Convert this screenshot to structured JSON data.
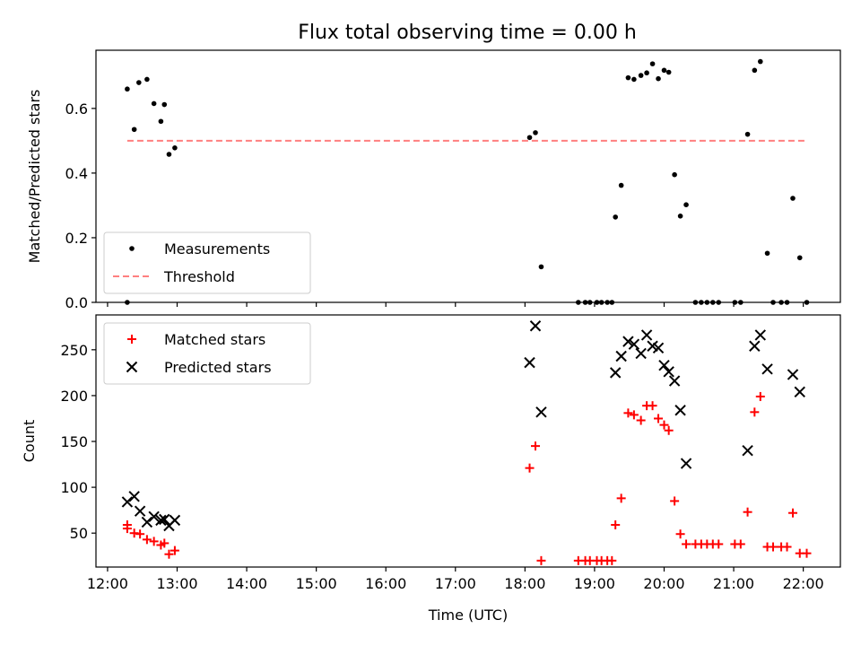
{
  "chart_data": [
    {
      "type": "scatter",
      "title": "Flux total observing time = 0.00 h",
      "xlabel": "",
      "ylabel": "Matched/Predicted stars",
      "xlim": [
        "11:50",
        "22:32"
      ],
      "ylim": [
        0,
        0.78
      ],
      "yticks": [
        0.0,
        0.2,
        0.4,
        0.6
      ],
      "grid": false,
      "legend_position": "lower-left",
      "series": [
        {
          "name": "Measurements",
          "kind": "scatter",
          "color": "#000000",
          "marker": "dot",
          "points": [
            [
              "12:17",
              0.0
            ],
            [
              "12:17",
              0.66
            ],
            [
              "12:23",
              0.535
            ],
            [
              "12:27",
              0.68
            ],
            [
              "12:34",
              0.69
            ],
            [
              "12:40",
              0.615
            ],
            [
              "12:46",
              0.56
            ],
            [
              "12:49",
              0.612
            ],
            [
              "12:53",
              0.458
            ],
            [
              "12:58",
              0.478
            ],
            [
              "18:04",
              0.51
            ],
            [
              "18:09",
              0.525
            ],
            [
              "18:14",
              0.11
            ],
            [
              "18:46",
              0.0
            ],
            [
              "18:52",
              0.0
            ],
            [
              "18:56",
              0.0
            ],
            [
              "19:02",
              0.0
            ],
            [
              "19:06",
              0.0
            ],
            [
              "19:11",
              0.0
            ],
            [
              "19:15",
              0.0
            ],
            [
              "19:18",
              0.264
            ],
            [
              "19:23",
              0.362
            ],
            [
              "19:29",
              0.695
            ],
            [
              "19:34",
              0.69
            ],
            [
              "19:40",
              0.702
            ],
            [
              "19:45",
              0.71
            ],
            [
              "19:50",
              0.738
            ],
            [
              "19:55",
              0.692
            ],
            [
              "20:00",
              0.718
            ],
            [
              "20:04",
              0.712
            ],
            [
              "20:09",
              0.395
            ],
            [
              "20:14",
              0.267
            ],
            [
              "20:19",
              0.302
            ],
            [
              "20:27",
              0.0
            ],
            [
              "20:32",
              0.0
            ],
            [
              "20:37",
              0.0
            ],
            [
              "20:42",
              0.0
            ],
            [
              "20:47",
              0.0
            ],
            [
              "21:01",
              0.0
            ],
            [
              "21:06",
              0.0
            ],
            [
              "21:12",
              0.52
            ],
            [
              "21:18",
              0.718
            ],
            [
              "21:23",
              0.745
            ],
            [
              "21:29",
              0.152
            ],
            [
              "21:34",
              0.0
            ],
            [
              "21:41",
              0.0
            ],
            [
              "21:46",
              0.0
            ],
            [
              "21:51",
              0.322
            ],
            [
              "21:57",
              0.138
            ],
            [
              "22:03",
              0.0
            ]
          ]
        },
        {
          "name": "Threshold",
          "kind": "line",
          "color": "#ff7f7f",
          "dashed": true,
          "points": [
            [
              "12:17",
              0.5
            ],
            [
              "22:03",
              0.5
            ]
          ]
        }
      ]
    },
    {
      "type": "scatter",
      "title": "",
      "xlabel": "Time (UTC)",
      "ylabel": "Count",
      "xlim": [
        "11:50",
        "22:32"
      ],
      "ylim": [
        13,
        288
      ],
      "yticks": [
        50,
        100,
        150,
        200,
        250
      ],
      "xticks": [
        "12:00",
        "13:00",
        "14:00",
        "15:00",
        "16:00",
        "17:00",
        "18:00",
        "19:00",
        "20:00",
        "21:00",
        "22:00"
      ],
      "grid": false,
      "legend_position": "upper-left",
      "series": [
        {
          "name": "Matched stars",
          "kind": "scatter",
          "color": "#ff0000",
          "marker": "plus",
          "points": [
            [
              "12:17",
              59
            ],
            [
              "12:17",
              55
            ],
            [
              "12:23",
              50
            ],
            [
              "12:28",
              49
            ],
            [
              "12:34",
              43
            ],
            [
              "12:40",
              41
            ],
            [
              "12:46",
              37
            ],
            [
              "12:49",
              39
            ],
            [
              "12:53",
              27
            ],
            [
              "12:58",
              31
            ],
            [
              "18:04",
              121
            ],
            [
              "18:09",
              145
            ],
            [
              "18:14",
              20
            ],
            [
              "18:46",
              20
            ],
            [
              "18:52",
              20
            ],
            [
              "18:56",
              20
            ],
            [
              "19:02",
              20
            ],
            [
              "19:06",
              20
            ],
            [
              "19:11",
              20
            ],
            [
              "19:15",
              20
            ],
            [
              "19:18",
              59
            ],
            [
              "19:23",
              88
            ],
            [
              "19:29",
              181
            ],
            [
              "19:34",
              179
            ],
            [
              "19:40",
              173
            ],
            [
              "19:45",
              189
            ],
            [
              "19:50",
              189
            ],
            [
              "19:55",
              175
            ],
            [
              "20:00",
              168
            ],
            [
              "20:04",
              162
            ],
            [
              "20:09",
              85
            ],
            [
              "20:14",
              49
            ],
            [
              "20:19",
              38
            ],
            [
              "20:27",
              38
            ],
            [
              "20:32",
              38
            ],
            [
              "20:37",
              38
            ],
            [
              "20:42",
              38
            ],
            [
              "20:47",
              38
            ],
            [
              "21:01",
              38
            ],
            [
              "21:06",
              38
            ],
            [
              "21:12",
              73
            ],
            [
              "21:18",
              182
            ],
            [
              "21:23",
              199
            ],
            [
              "21:29",
              35
            ],
            [
              "21:34",
              35
            ],
            [
              "21:41",
              35
            ],
            [
              "21:46",
              35
            ],
            [
              "21:51",
              72
            ],
            [
              "21:57",
              28
            ],
            [
              "22:03",
              28
            ]
          ]
        },
        {
          "name": "Predicted stars",
          "kind": "scatter",
          "color": "#000000",
          "marker": "x",
          "points": [
            [
              "12:17",
              84
            ],
            [
              "12:23",
              90
            ],
            [
              "12:28",
              74
            ],
            [
              "12:34",
              62
            ],
            [
              "12:40",
              68
            ],
            [
              "12:46",
              64
            ],
            [
              "12:49",
              65
            ],
            [
              "12:53",
              58
            ],
            [
              "12:58",
              64
            ],
            [
              "18:04",
              236
            ],
            [
              "18:09",
              276
            ],
            [
              "18:14",
              182
            ],
            [
              "19:18",
              225
            ],
            [
              "19:23",
              243
            ],
            [
              "19:29",
              259
            ],
            [
              "19:34",
              256
            ],
            [
              "19:40",
              246
            ],
            [
              "19:45",
              266
            ],
            [
              "19:50",
              254
            ],
            [
              "19:55",
              252
            ],
            [
              "20:00",
              233
            ],
            [
              "20:04",
              226
            ],
            [
              "20:09",
              216
            ],
            [
              "20:14",
              184
            ],
            [
              "20:19",
              126
            ],
            [
              "21:12",
              140
            ],
            [
              "21:18",
              254
            ],
            [
              "21:23",
              266
            ],
            [
              "21:29",
              229
            ],
            [
              "21:51",
              223
            ],
            [
              "21:57",
              204
            ]
          ]
        }
      ]
    }
  ]
}
